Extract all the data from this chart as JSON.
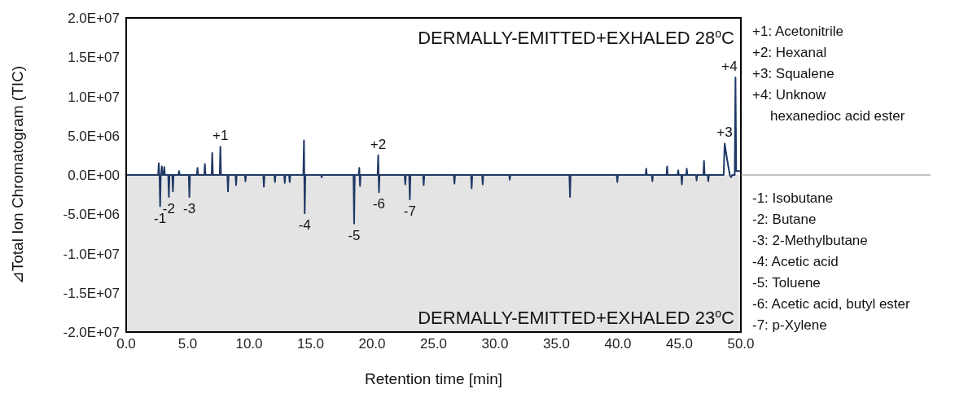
{
  "chart_data": {
    "type": "line",
    "xlabel": "Retention time [min]",
    "ylabel": "⊿Total Ion Chromatogram (TIC)",
    "xlim": [
      0,
      50
    ],
    "xticks": [
      {
        "value": 0,
        "label": "0.0"
      },
      {
        "value": 5,
        "label": "5.0"
      },
      {
        "value": 10,
        "label": "10.0"
      },
      {
        "value": 15,
        "label": "15.0"
      },
      {
        "value": 20,
        "label": "20.0"
      },
      {
        "value": 25,
        "label": "25.0"
      },
      {
        "value": 30,
        "label": "30.0"
      },
      {
        "value": 35,
        "label": "35.0"
      },
      {
        "value": 40,
        "label": "40.0"
      },
      {
        "value": 45,
        "label": "45.0"
      },
      {
        "value": 50,
        "label": "50.0"
      }
    ],
    "ylim": [
      -20000000,
      20000000
    ],
    "yticks": [
      {
        "value": -20000000,
        "label": "-2.0E+07"
      },
      {
        "value": -15000000,
        "label": "-1.5E+07"
      },
      {
        "value": -10000000,
        "label": "-1.0E+07"
      },
      {
        "value": -5000000,
        "label": "-5.0E+06"
      },
      {
        "value": 0,
        "label": "0.0E+00"
      },
      {
        "value": 5000000,
        "label": "5.0E+06"
      },
      {
        "value": 10000000,
        "label": "1.0E+07"
      },
      {
        "value": 15000000,
        "label": "1.5E+07"
      },
      {
        "value": 20000000,
        "label": "2.0E+07"
      }
    ],
    "marker": "none",
    "line_style": "solid",
    "bands": [
      {
        "axis": "y",
        "from": -20000000,
        "to": 0,
        "label": "DERMALLY-EMITTED+EXHALED 23$^{o}$C",
        "color": "#e4e4e4"
      }
    ],
    "series": [
      {
        "color": "#1f3864",
        "x": [
          0,
          2.6,
          2.65,
          2.7,
          2.71,
          2.76,
          2.81,
          2.85,
          2.9,
          2.95,
          3.05,
          3.1,
          3.15,
          3.42,
          3.47,
          3.52,
          3.75,
          3.8,
          3.85,
          4.25,
          4.3,
          4.35,
          5.09,
          5.14,
          5.19,
          5.75,
          5.8,
          5.85,
          6.35,
          6.4,
          6.45,
          6.95,
          7.0,
          7.05,
          7.61,
          7.66,
          7.71,
          8.23,
          8.28,
          8.33,
          8.89,
          8.94,
          8.99,
          9.65,
          9.7,
          9.75,
          11.15,
          11.2,
          11.25,
          12.05,
          12.1,
          12.15,
          12.85,
          12.9,
          12.95,
          13.25,
          13.3,
          13.35,
          14.41,
          14.46,
          14.52,
          14.57,
          15.85,
          15.9,
          15.95,
          18.49,
          18.54,
          18.59,
          18.91,
          18.96,
          19.02,
          19.07,
          20.45,
          20.5,
          20.56,
          20.61,
          22.65,
          22.7,
          22.75,
          23.02,
          23.07,
          23.12,
          24.15,
          24.2,
          24.25,
          26.65,
          26.7,
          26.75,
          28.05,
          28.1,
          28.15,
          28.95,
          29.0,
          29.05,
          31.15,
          31.2,
          31.25,
          36.05,
          36.1,
          36.15,
          39.9,
          39.95,
          40.0,
          42.25,
          42.3,
          42.35,
          42.75,
          42.8,
          42.85,
          43.95,
          44.0,
          44.05,
          44.85,
          44.9,
          44.95,
          45.15,
          45.2,
          45.25,
          45.55,
          45.6,
          45.65,
          46.35,
          46.4,
          46.45,
          46.95,
          47.0,
          47.05,
          47.3,
          47.35,
          47.4,
          48.6,
          48.68,
          48.9,
          49.1,
          49.2,
          49.3,
          49.5,
          49.56,
          49.62,
          50
        ],
        "values": [
          0,
          0,
          1500000,
          0,
          0,
          -4000000,
          0,
          0,
          1100000,
          0,
          0,
          1000000,
          0,
          0,
          -2800000,
          0,
          0,
          -2100000,
          0,
          0,
          500000,
          0,
          0,
          -2800000,
          0,
          0,
          900000,
          0,
          0,
          1400000,
          0,
          0,
          2800000,
          0,
          0,
          3600000,
          0,
          0,
          -2100000,
          0,
          0,
          -1300000,
          0,
          0,
          -800000,
          0,
          0,
          -1500000,
          0,
          0,
          -900000,
          0,
          0,
          -1000000,
          0,
          0,
          -900000,
          0,
          0,
          4400000,
          -4900000,
          0,
          0,
          -300000,
          0,
          0,
          -6200000,
          0,
          0,
          900000,
          -1400000,
          0,
          0,
          2500000,
          -2200000,
          0,
          0,
          -1200000,
          0,
          0,
          -3100000,
          0,
          0,
          -1300000,
          0,
          0,
          -1100000,
          0,
          0,
          -1700000,
          0,
          0,
          -1200000,
          0,
          0,
          -600000,
          0,
          0,
          -2800000,
          0,
          0,
          -900000,
          0,
          0,
          800000,
          0,
          0,
          -800000,
          0,
          0,
          1100000,
          0,
          0,
          600000,
          0,
          0,
          -1200000,
          0,
          0,
          800000,
          0,
          0,
          -700000,
          0,
          0,
          1800000,
          0,
          0,
          -800000,
          0,
          0,
          4000000,
          1800000,
          0,
          -300000,
          0,
          0,
          12400000,
          500000,
          500000
        ]
      }
    ],
    "annotations": [
      {
        "text": "+1",
        "x": 7.66,
        "y": 3600000
      },
      {
        "text": "+2",
        "x": 20.5,
        "y": 2500000
      },
      {
        "text": "+3",
        "x": 48.68,
        "y": 4000000
      },
      {
        "text": "+4",
        "x": 49.56,
        "y": 12400000
      },
      {
        "text": "-1",
        "x": 2.76,
        "y": -4000000
      },
      {
        "text": "-2",
        "x": 3.47,
        "y": -2800000
      },
      {
        "text": "-3",
        "x": 5.14,
        "y": -2800000
      },
      {
        "text": "-4",
        "x": 14.52,
        "y": -4900000
      },
      {
        "text": "-5",
        "x": 18.54,
        "y": -6200000
      },
      {
        "text": "-6",
        "x": 20.56,
        "y": -2200000
      },
      {
        "text": "-7",
        "x": 23.07,
        "y": -3100000
      },
      "DERMALLY-EMITTED+EXHALED 28$^{o}$C",
      "+1: Acetonitrile",
      "+2: Hexanal",
      "+3: Squalene",
      "+4: Unknow",
      "hexanedioc acid ester",
      "-1: Isobutane",
      "-2: Butane",
      "-3: 2-Methylbutane",
      "-4: Acetic acid",
      "-5: Toluene",
      "-6: Acetic acid, butyl ester",
      "-7: p-Xylene"
    ]
  }
}
